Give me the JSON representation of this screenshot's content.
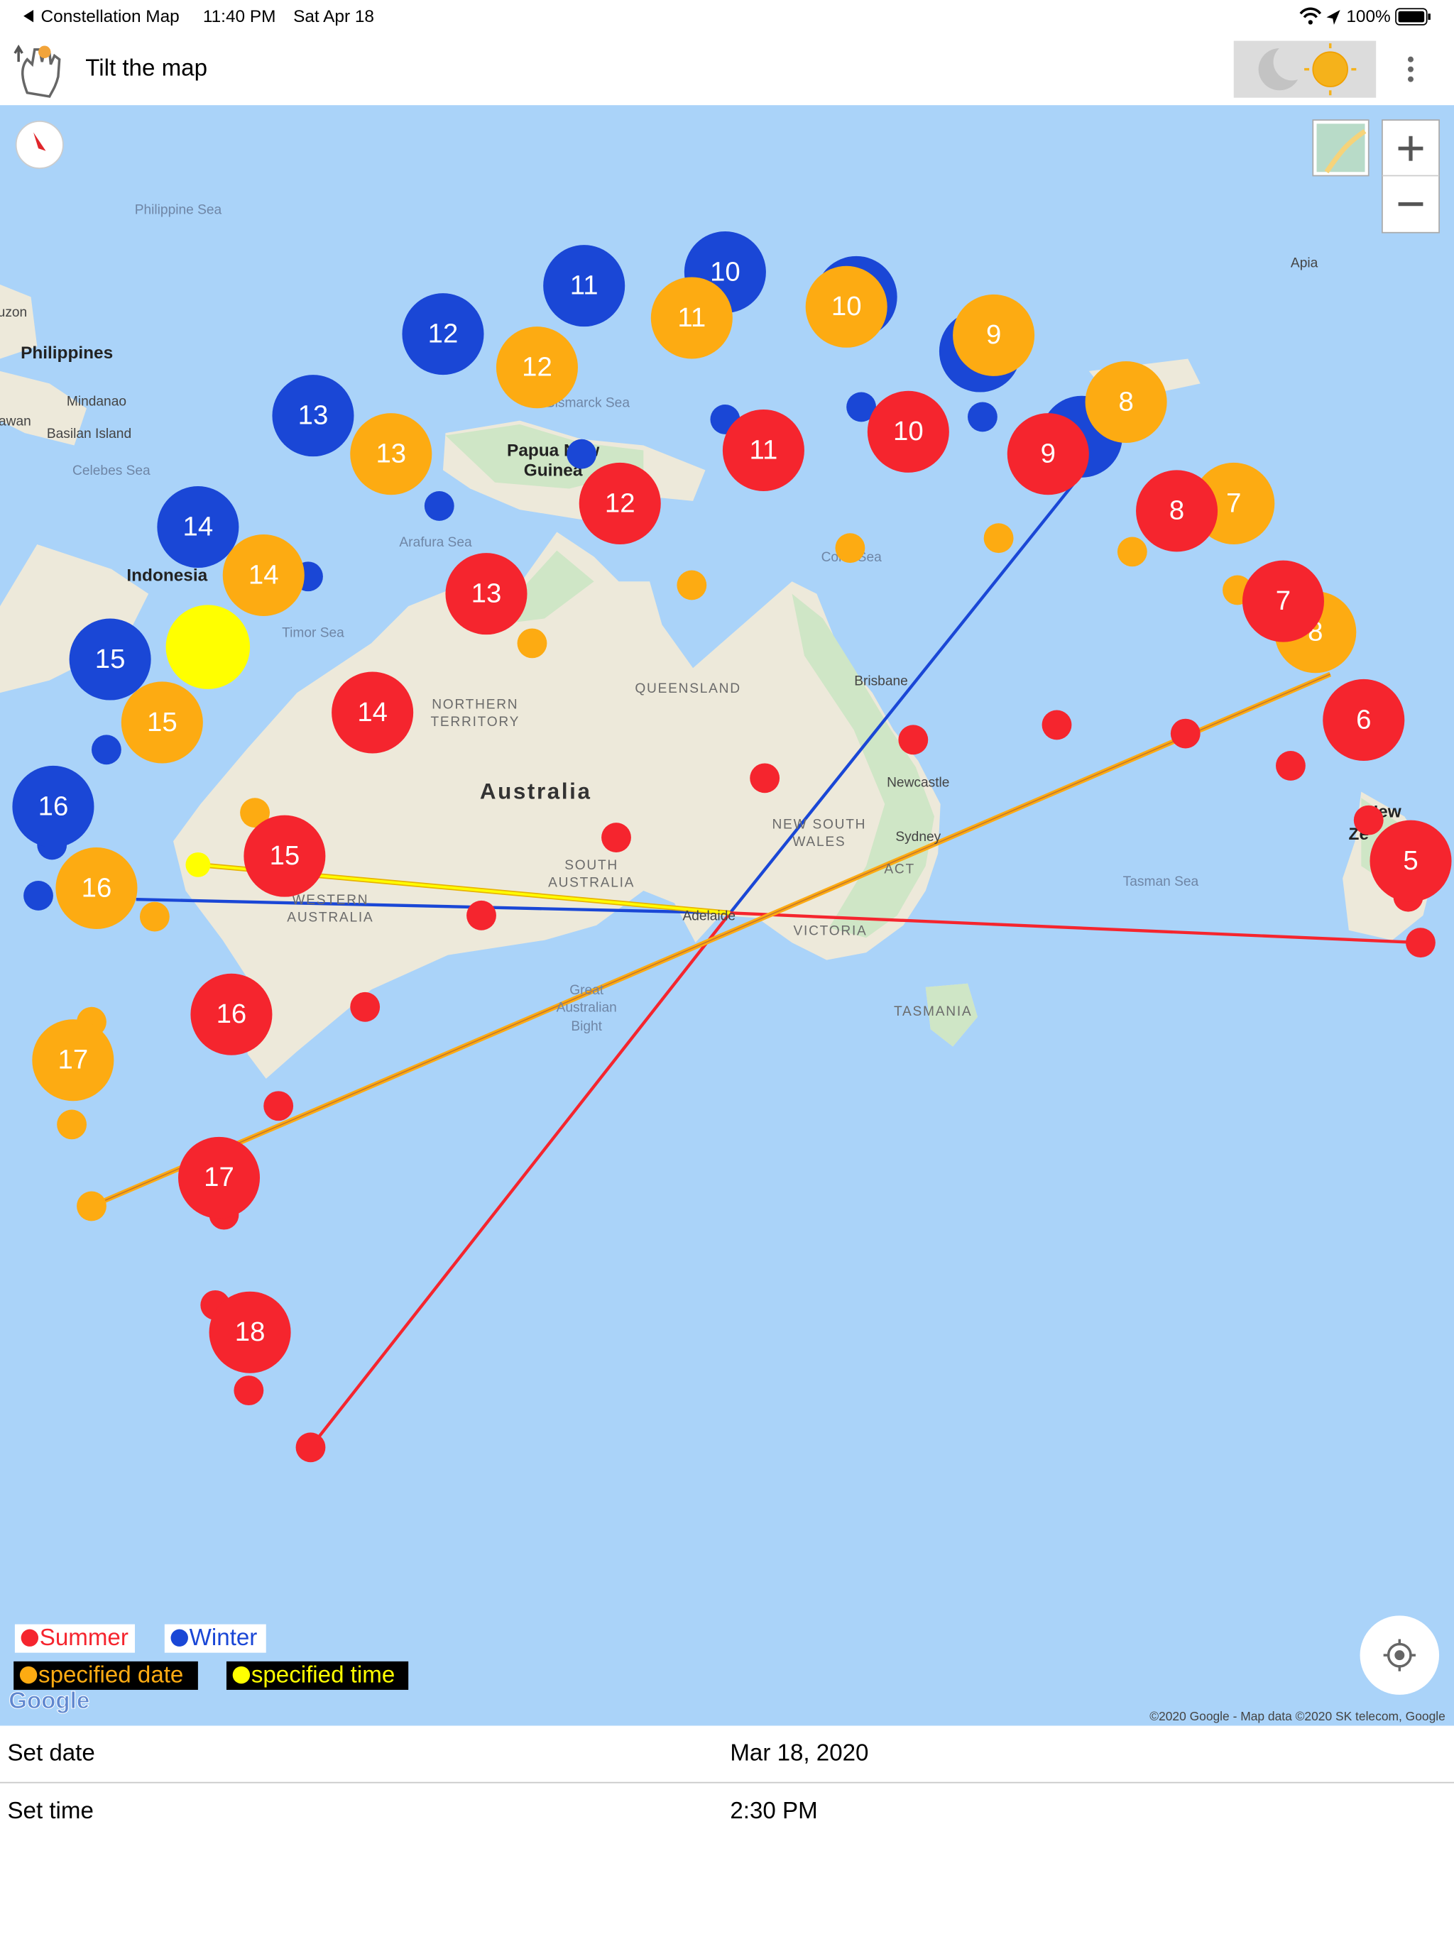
{
  "status_bar": {
    "back_app": "Constellation Map",
    "time": "11:40 PM",
    "date": "Sat Apr 18",
    "battery": "100%"
  },
  "nav": {
    "title": "Tilt the map"
  },
  "map": {
    "labels": [
      "Philippine Sea",
      "Apia",
      "uzon",
      "Philippines",
      "Mindanao",
      "awan",
      "Basilan Island",
      "Celebes Sea",
      "Bismarck Sea",
      "Papua New",
      "Guinea",
      "Arafura Sea",
      "Indonesia",
      "Timor Sea",
      "Coral Sea",
      "QUEENSLAND",
      "Brisbane",
      "NORTHERN",
      "TERRITORY",
      "Australia",
      "Newcastle",
      "NEW SOUTH",
      "WALES",
      "Sydney",
      "SOUTH",
      "AUSTRALIA",
      "ACT",
      "Tasman Sea",
      "WESTERN",
      "AUSTRALIA",
      "Adelaide",
      "VICTORIA",
      "Great",
      "Australian",
      "Bight",
      "TASMANIA",
      "New",
      "Ze"
    ],
    "markers": {
      "winter": {
        "color": "#1a47d6",
        "labels": [
          10,
          11,
          12,
          13,
          14,
          15,
          16
        ]
      },
      "date": {
        "color": "#fdab12",
        "labels": [
          11,
          12,
          13,
          14,
          15,
          16,
          17,
          10,
          9,
          8,
          7,
          8
        ]
      },
      "summer": {
        "color": "#f5252e",
        "labels": [
          11,
          12,
          13,
          14,
          15,
          16,
          17,
          18,
          10,
          9,
          8,
          7,
          6,
          5
        ]
      },
      "time": {
        "color": "#ffff00"
      }
    },
    "legend": [
      {
        "label": "Summer",
        "color": "#f5252e"
      },
      {
        "label": "Winter",
        "color": "#1a47d6"
      },
      {
        "label": "specified date",
        "color": "#fdab12"
      },
      {
        "label": "specified time",
        "color": "#ffff00"
      }
    ],
    "logo": "Google",
    "attribution": "©2020 Google - Map data ©2020 SK telecom, Google"
  },
  "settings": [
    {
      "label": "Set date",
      "value": "Mar 18, 2020"
    },
    {
      "label": "Set time",
      "value": "2:30 PM"
    }
  ]
}
